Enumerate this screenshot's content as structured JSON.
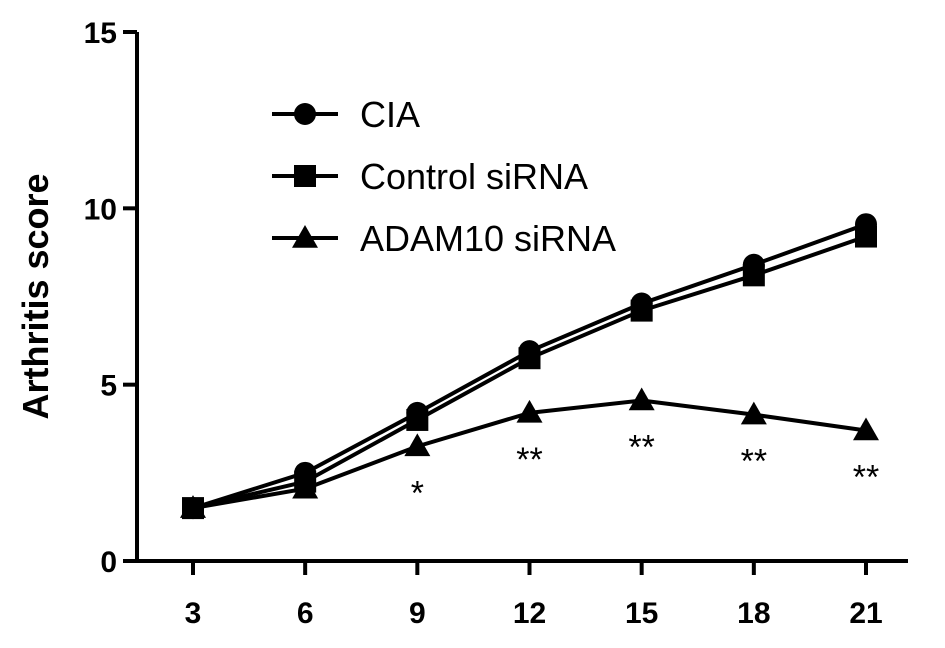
{
  "chart_data": {
    "type": "line",
    "title": "",
    "xlabel": "",
    "ylabel": "Arthritis score",
    "xlim": [
      3,
      21
    ],
    "ylim": [
      0,
      15
    ],
    "x_ticks": [
      "3",
      "6",
      "9",
      "12",
      "15",
      "18",
      "21"
    ],
    "y_ticks": [
      "0",
      "5",
      "10",
      "15"
    ],
    "x": [
      3,
      6,
      9,
      12,
      15,
      18,
      21
    ],
    "grid": false,
    "legend_position": "top-left",
    "series": [
      {
        "name": "CIA",
        "marker": "circle",
        "values": [
          1.5,
          2.5,
          4.2,
          5.95,
          7.3,
          8.4,
          9.55
        ]
      },
      {
        "name": "Control siRNA",
        "marker": "square",
        "values": [
          1.5,
          2.25,
          4.0,
          5.75,
          7.1,
          8.1,
          9.2
        ]
      },
      {
        "name": "ADAM10 siRNA",
        "marker": "triangle",
        "values": [
          1.5,
          2.05,
          3.25,
          4.2,
          4.55,
          4.15,
          3.7
        ]
      }
    ],
    "annotations": [
      {
        "x": 9,
        "text": "*"
      },
      {
        "x": 12,
        "text": "**"
      },
      {
        "x": 15,
        "text": "**"
      },
      {
        "x": 18,
        "text": "**"
      },
      {
        "x": 21,
        "text": "**"
      }
    ],
    "colors": {
      "line": "#000000",
      "marker_fill": "#000000"
    }
  }
}
